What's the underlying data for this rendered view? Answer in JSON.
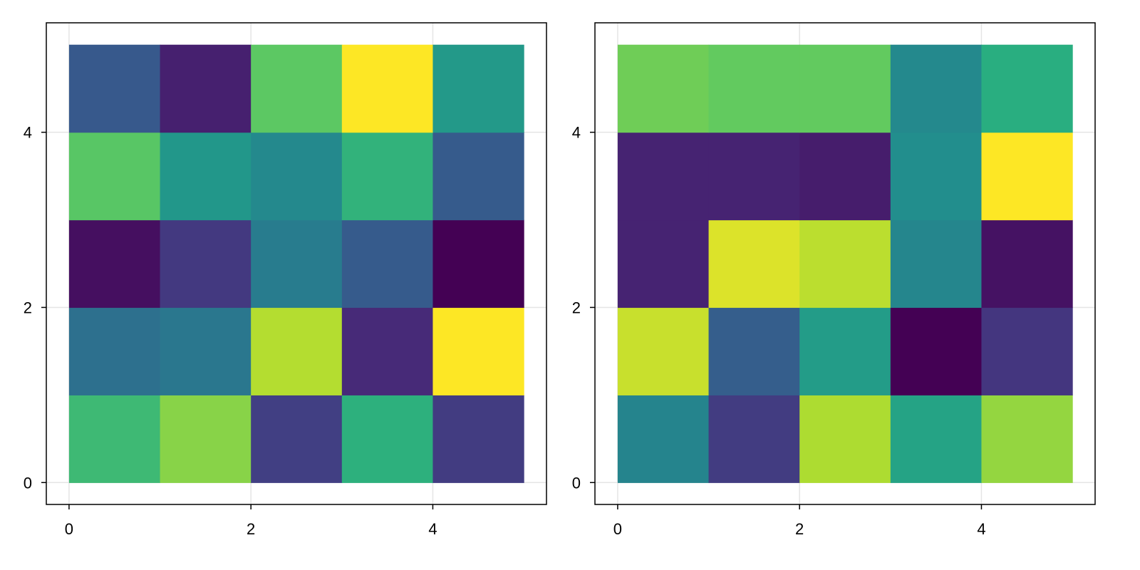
{
  "chart_data": [
    {
      "type": "heatmap",
      "title": "",
      "xlabel": "",
      "ylabel": "",
      "x_edges": [
        0,
        1,
        2,
        3,
        4,
        5
      ],
      "y_edges": [
        0,
        1,
        2,
        3,
        4,
        5
      ],
      "xlim": [
        -0.25,
        5.25
      ],
      "ylim": [
        -0.25,
        5.25
      ],
      "x_ticks": [
        0,
        2,
        4
      ],
      "y_ticks": [
        0,
        2,
        4
      ],
      "x_tick_labels": [
        "0",
        "2",
        "4"
      ],
      "y_tick_labels": [
        "0",
        "2",
        "4"
      ],
      "grid": true,
      "colormap": "viridis",
      "color_range": [
        0,
        1
      ],
      "values": [
        [
          0.68,
          0.82,
          0.19,
          0.64,
          0.18
        ],
        [
          0.37,
          0.4,
          0.89,
          0.12,
          1.0
        ],
        [
          0.04,
          0.17,
          0.42,
          0.29,
          0.0
        ],
        [
          0.74,
          0.53,
          0.47,
          0.65,
          0.29
        ],
        [
          0.28,
          0.09,
          0.75,
          1.0,
          0.54
        ]
      ]
    },
    {
      "type": "heatmap",
      "title": "",
      "xlabel": "",
      "ylabel": "",
      "x_edges": [
        0,
        1,
        2,
        3,
        4,
        5
      ],
      "y_edges": [
        0,
        1,
        2,
        3,
        4,
        5
      ],
      "xlim": [
        -0.25,
        5.25
      ],
      "ylim": [
        -0.25,
        5.25
      ],
      "x_ticks": [
        0,
        2,
        4
      ],
      "y_ticks": [
        0,
        2,
        4
      ],
      "x_tick_labels": [
        "0",
        "2",
        "4"
      ],
      "y_tick_labels": [
        "0",
        "2",
        "4"
      ],
      "grid": true,
      "colormap": "viridis",
      "color_range": [
        0,
        1
      ],
      "values": [
        [
          0.45,
          0.18,
          0.88,
          0.58,
          0.84
        ],
        [
          0.92,
          0.3,
          0.55,
          0.0,
          0.16
        ],
        [
          0.1,
          0.95,
          0.9,
          0.46,
          0.05
        ],
        [
          0.1,
          0.1,
          0.08,
          0.49,
          1.0
        ],
        [
          0.78,
          0.76,
          0.76,
          0.47,
          0.63
        ]
      ]
    }
  ]
}
